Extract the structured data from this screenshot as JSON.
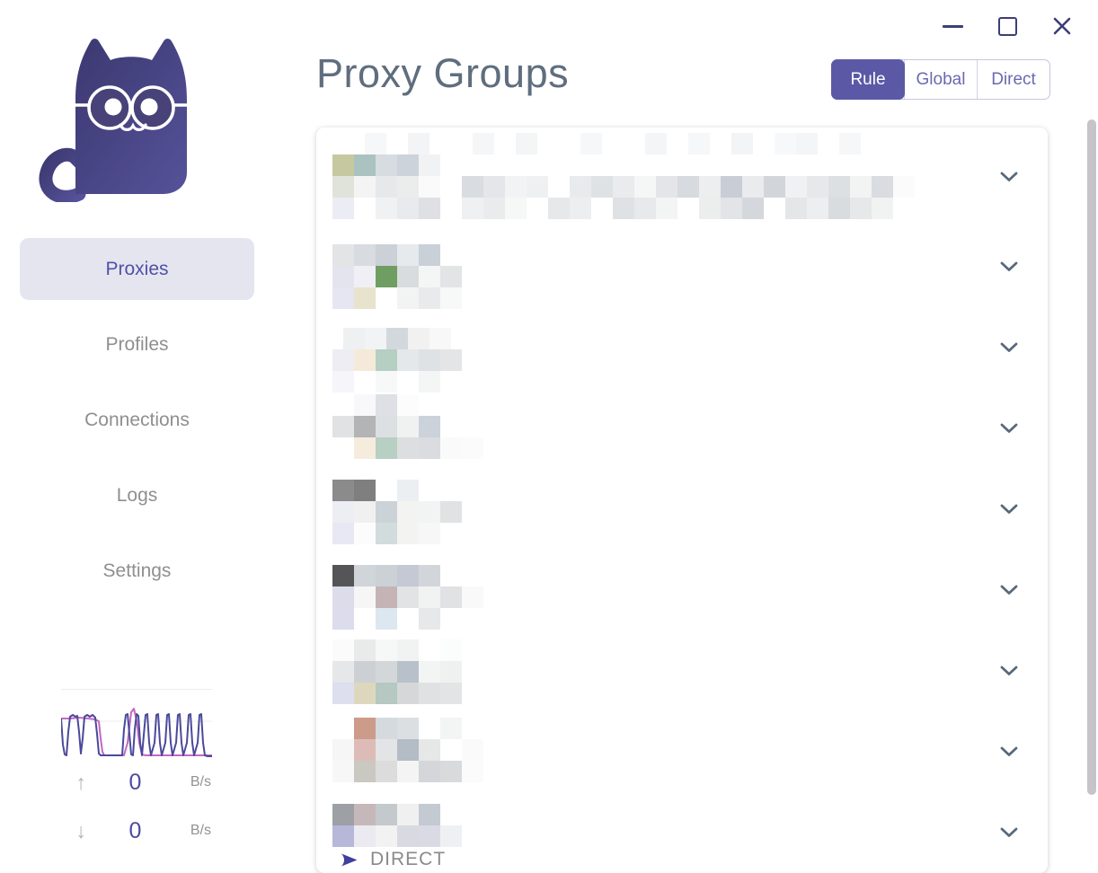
{
  "window": {
    "controls": [
      {
        "name": "minimize"
      },
      {
        "name": "maximize"
      },
      {
        "name": "close"
      }
    ]
  },
  "header": {
    "title": "Proxy Groups",
    "modes": [
      {
        "label": "Rule",
        "active": true
      },
      {
        "label": "Global",
        "active": false
      },
      {
        "label": "Direct",
        "active": false
      }
    ]
  },
  "sidebar": {
    "items": [
      {
        "label": "Proxies",
        "active": true
      },
      {
        "label": "Profiles",
        "active": false
      },
      {
        "label": "Connections",
        "active": false
      },
      {
        "label": "Logs",
        "active": false
      },
      {
        "label": "Settings",
        "active": false
      }
    ],
    "traffic": {
      "up": {
        "value": "0",
        "unit": "B/s"
      },
      "down": {
        "value": "0",
        "unit": "B/s"
      },
      "chart": {
        "type": "line",
        "series": [
          {
            "name": "download",
            "color": "#c468c4",
            "points": [
              [
                0,
                33
              ],
              [
                10,
                33
              ],
              [
                20,
                32
              ],
              [
                30,
                33
              ],
              [
                38,
                34
              ],
              [
                42,
                36
              ],
              [
                44,
                55
              ],
              [
                46,
                70
              ],
              [
                48,
                74
              ],
              [
                60,
                74
              ],
              [
                70,
                74
              ],
              [
                74,
                60
              ],
              [
                78,
                26
              ],
              [
                81,
                22
              ],
              [
                84,
                35
              ],
              [
                87,
                60
              ],
              [
                90,
                73
              ],
              [
                94,
                74
              ],
              [
                110,
                74
              ],
              [
                130,
                74
              ],
              [
                150,
                74
              ],
              [
                168,
                74
              ]
            ]
          },
          {
            "name": "upload",
            "color": "#4b499b",
            "points": [
              [
                0,
                33
              ],
              [
                2,
                62
              ],
              [
                4,
                73
              ],
              [
                6,
                74
              ],
              [
                8,
                48
              ],
              [
                10,
                31
              ],
              [
                13,
                29
              ],
              [
                16,
                31
              ],
              [
                18,
                30
              ],
              [
                20,
                48
              ],
              [
                22,
                72
              ],
              [
                24,
                55
              ],
              [
                26,
                31
              ],
              [
                29,
                29
              ],
              [
                32,
                31
              ],
              [
                35,
                29
              ],
              [
                38,
                32
              ],
              [
                40,
                50
              ],
              [
                42,
                72
              ],
              [
                44,
                74
              ],
              [
                55,
                74
              ],
              [
                68,
                74
              ],
              [
                70,
                45
              ],
              [
                72,
                29
              ],
              [
                74,
                28
              ],
              [
                76,
                50
              ],
              [
                78,
                73
              ],
              [
                80,
                74
              ],
              [
                82,
                45
              ],
              [
                84,
                28
              ],
              [
                86,
                30
              ],
              [
                88,
                60
              ],
              [
                90,
                74
              ],
              [
                94,
                29
              ],
              [
                96,
                28
              ],
              [
                98,
                60
              ],
              [
                100,
                74
              ],
              [
                104,
                60
              ],
              [
                106,
                29
              ],
              [
                108,
                28
              ],
              [
                110,
                60
              ],
              [
                112,
                74
              ],
              [
                116,
                60
              ],
              [
                118,
                29
              ],
              [
                120,
                28
              ],
              [
                122,
                60
              ],
              [
                124,
                74
              ],
              [
                128,
                60
              ],
              [
                130,
                29
              ],
              [
                132,
                28
              ],
              [
                134,
                60
              ],
              [
                136,
                74
              ],
              [
                140,
                60
              ],
              [
                142,
                29
              ],
              [
                144,
                28
              ],
              [
                146,
                60
              ],
              [
                148,
                74
              ],
              [
                152,
                60
              ],
              [
                154,
                29
              ],
              [
                156,
                28
              ],
              [
                158,
                60
              ],
              [
                160,
                74
              ],
              [
                163,
                75
              ],
              [
                168,
                75
              ]
            ]
          }
        ]
      }
    }
  },
  "main": {
    "direct_row": {
      "label": "DIRECT"
    },
    "groups": [
      {
        "pad": 6,
        "lines": [
          {
            "o": 0.5,
            "c": [
              "#ffffff",
              "#f6f7f8",
              "#ffffff",
              "#f2f4f6",
              "#ffffff",
              "#ffffff",
              "#f5f6f7",
              "#ffffff",
              "#f3f5f6",
              "#ffffff",
              "#ffffff",
              "#f6f7f8",
              "#ffffff",
              "#ffffff",
              "#f4f5f7",
              "#ffffff",
              "#f6f7f8",
              "#ffffff",
              "#f2f4f5",
              "#ffffff",
              "#f7f8f9",
              "#f4f5f6",
              "#ffffff",
              "#f6f7f8"
            ]
          },
          {
            "o": 0,
            "c": [
              "#c6c99f",
              "#aac3c0",
              "#d7dce1",
              "#ccd3db",
              "#f1f2f3"
            ]
          },
          {
            "o": 0,
            "c": [
              "#e0e3d9",
              "#f4f4f4",
              "#e7e8ea",
              "#ebecec",
              "#fafafa",
              "#ffffff",
              "#d9dce0",
              "#e4e6e9",
              "#f2f3f4",
              "#eef0f1",
              "#ffffff",
              "#e8eaec",
              "#dfe2e5",
              "#e9ebed",
              "#f5f6f6",
              "#e3e5e8",
              "#d7dadf",
              "#eceeef",
              "#c9ced6",
              "#e9ebed",
              "#d2d6db",
              "#f0f1f2",
              "#e6e8ea",
              "#dde0e3",
              "#f2f3f3",
              "#d9dce0",
              "#fbfbfc"
            ]
          },
          {
            "o": 0,
            "c": [
              "#ececf4",
              "#ffffff",
              "#f0f1f3",
              "#e9eaed",
              "#dee0e4",
              "#ffffff",
              "#eff0f1",
              "#e9ebec",
              "#f6f7f7",
              "#ffffff",
              "#e6e8ea",
              "#eceeef",
              "#ffffff",
              "#dfe2e5",
              "#e7e9eb",
              "#f3f4f4",
              "#ffffff",
              "#eceded",
              "#e2e4e7",
              "#d4d7db",
              "#ffffff",
              "#e4e6e8",
              "#edeeef",
              "#d9dcdf",
              "#e6e8e9",
              "#f1f2f2"
            ]
          }
        ]
      },
      {
        "pad": 20,
        "lines": [
          {
            "o": 0,
            "c": [
              "#e3e4e6",
              "#d8dbdf",
              "#ccd1d7",
              "#e7eaec",
              "#c9d0d8"
            ]
          },
          {
            "o": 0,
            "c": [
              "#e4e4ee",
              "#efeff5",
              "#6f9e62",
              "#d9dcde",
              "#f4f6f5",
              "#e2e4e6"
            ]
          },
          {
            "o": 0,
            "c": [
              "#e6e6f2",
              "#e8e3cd",
              "#ffffff",
              "#f2f3f3",
              "#e9eaec",
              "#f7f8f8"
            ]
          }
        ]
      },
      {
        "pad": 23,
        "lines": [
          {
            "o": 0.5,
            "c": [
              "#eef0f2",
              "#f2f3f4",
              "#d3d8dd",
              "#f1f1f1",
              "#f8f8f8"
            ]
          },
          {
            "o": 0,
            "c": [
              "#ededf3",
              "#f5ead9",
              "#b5cfc2",
              "#e5e8ea",
              "#dfe2e5",
              "#e3e5e6"
            ]
          },
          {
            "o": 0,
            "c": [
              "#f5f5fa",
              "#ffffff",
              "#f7f8f8",
              "#ffffff",
              "#f4f5f5"
            ]
          }
        ]
      },
      {
        "pad": 7,
        "lines": [
          {
            "o": 1,
            "c": [
              "#f8f8fa",
              "#dde1e5",
              "#fcfcfc"
            ]
          },
          {
            "o": 0,
            "c": [
              "#e1e2e4",
              "#b2b4b6",
              "#dde0e3",
              "#f0f1f1",
              "#ccd2da"
            ]
          },
          {
            "o": 0,
            "c": [
              "#ffffff",
              "#f5ecdd",
              "#b8cfc4",
              "#dcdee0",
              "#dadcdf",
              "#fafafa",
              "#fbfbfb"
            ]
          }
        ]
      },
      {
        "pad": 12,
        "lines": [
          {
            "o": 0,
            "c": [
              "#8b8b8b",
              "#7f7f7f",
              "#ffffff",
              "#eceff1"
            ]
          },
          {
            "o": 0,
            "c": [
              "#ededf4",
              "#f0f0f0",
              "#ccd3d8",
              "#f3f3f1",
              "#f2f3f3",
              "#e0e2e4"
            ]
          },
          {
            "o": 0,
            "c": [
              "#e8e8f4",
              "#fcfcfc",
              "#d2dcdc",
              "#f3f4f2",
              "#f6f7f6"
            ]
          }
        ]
      },
      {
        "pad": 17,
        "lines": [
          {
            "o": 0,
            "c": [
              "#555558",
              "#d0d5da",
              "#ccd1d6",
              "#c4c9d4",
              "#d2d6db"
            ]
          },
          {
            "o": 0,
            "c": [
              "#dcdcea",
              "#f6f6f6",
              "#c4b4b6",
              "#e1e3e5",
              "#f1f2f2",
              "#e0e2e3",
              "#f9f9f9"
            ]
          },
          {
            "o": 0,
            "c": [
              "#dcdcec",
              "#ffffff",
              "#dde7f0",
              "#ffffff",
              "#e6e8e9"
            ]
          }
        ]
      },
      {
        "pad": 10,
        "lines": [
          {
            "o": 0,
            "c": [
              "#fbfbfb",
              "#e9eaea",
              "#f6f7f7",
              "#f1f2f2",
              "#ffffff",
              "#fbfcfc"
            ]
          },
          {
            "o": 0,
            "c": [
              "#e6e7e8",
              "#ccd0d4",
              "#d3d7da",
              "#b8c0c9",
              "#f3f5f4",
              "#eff0f0"
            ]
          },
          {
            "o": 0,
            "c": [
              "#dddeee",
              "#ddd8bd",
              "#b5c8c2",
              "#d5d7d9",
              "#dfe1e2",
              "#e2e4e5"
            ]
          }
        ]
      },
      {
        "pad": 7,
        "lines": [
          {
            "o": 0,
            "c": [
              "#ffffff",
              "#cc9b8a",
              "#d5dade",
              "#dbdfe2",
              "#ffffff",
              "#f2f5f4"
            ]
          },
          {
            "o": 0,
            "c": [
              "#f6f6f7",
              "#ddbcb7",
              "#e3e4e6",
              "#b4bcc6",
              "#e6e7e7",
              "#ffffff",
              "#fafafa"
            ]
          },
          {
            "o": 0,
            "c": [
              "#f7f7f8",
              "#c9c9c1",
              "#dcdcdc",
              "#f3f4f3",
              "#d4d6d9",
              "#d8dadc",
              "#fbfbfb"
            ]
          }
        ]
      },
      {
        "pad": 13,
        "direct": true,
        "lines": [
          {
            "o": 0,
            "c": [
              "#9da0a4",
              "#c6b8ba",
              "#c4c9cd",
              "#f0f0f0",
              "#c3cad1"
            ]
          },
          {
            "o": 0,
            "c": [
              "#b7b7da",
              "#eaeaf0",
              "#f2f2f2",
              "#d9d9e2",
              "#dadae4",
              "#eff0f3"
            ]
          }
        ]
      }
    ]
  },
  "colors": {
    "accent": "#5b59a6",
    "pill_bg": "#e5e5f0",
    "title": "#5f6e7e",
    "chevron": "#57697b",
    "arrow": "#3f3f9d",
    "window_controls": "#3c3e75",
    "scrollbar": "#c4c4c9",
    "gridline": "#ececec"
  }
}
